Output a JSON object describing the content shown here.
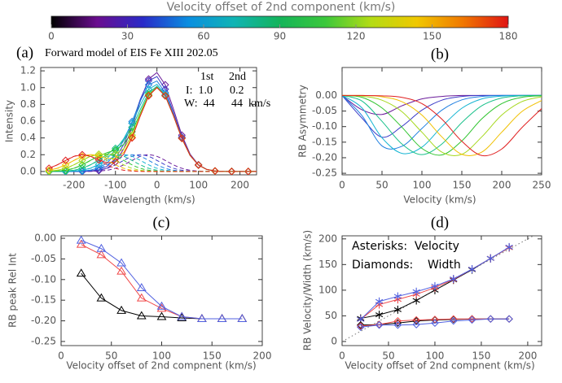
{
  "chart_data": [
    {
      "type": "colorbar",
      "title": "Velocity offset of 2nd component (km/s)",
      "xlim": [
        0,
        180
      ],
      "xticks": [
        0,
        30,
        60,
        90,
        120,
        150,
        180
      ],
      "colors": [
        "#000000",
        "#6a0d8f",
        "#2a2ac8",
        "#0a8ee0",
        "#10b4b4",
        "#14b45a",
        "#3cc83c",
        "#b4dc14",
        "#f0c800",
        "#f07800",
        "#e01414"
      ]
    },
    {
      "type": "line",
      "title": "(a)",
      "subtitle": "Forward model of EIS Fe XIII 202.05",
      "annotations": [
        "1st",
        "2nd",
        "I:  1.0",
        "0.2",
        "W:  44",
        "44  km/s"
      ],
      "xlabel": "Wavelength (km/s)",
      "ylabel": "Intensity",
      "xlim": [
        -280,
        240
      ],
      "xticks": [
        -200,
        -100,
        0,
        100,
        200
      ],
      "ylim": [
        -0.04,
        1.24
      ],
      "yticks": [
        {
          "value": 0,
          "label": "0.0"
        },
        0.2,
        0.4,
        0.6,
        0.8,
        {
          "value": 1,
          "label": "1.0"
        },
        1.2
      ],
      "x": [
        -260,
        -240,
        -220,
        -200,
        -180,
        -160,
        -140,
        -120,
        -100,
        -80,
        -60,
        -40,
        -20,
        0,
        20,
        40,
        60,
        80,
        100,
        120,
        140,
        160,
        180,
        200,
        220,
        240
      ],
      "series": [
        {
          "color": "#6a1b9a",
          "marker": "diamond",
          "values": [
            0,
            0,
            0,
            0,
            0,
            0.002,
            0.011,
            0.039,
            0.114,
            0.27,
            0.527,
            0.842,
            1.102,
            1.18,
            1.034,
            0.741,
            0.433,
            0.206,
            0.081,
            0.025,
            0.006,
            0.001,
            0,
            0,
            0,
            0
          ]
        },
        {
          "color": "#3c3cc8",
          "marker": "diamond",
          "values": [
            0,
            0,
            0,
            0,
            0.001,
            0.006,
            0.021,
            0.062,
            0.155,
            0.323,
            0.575,
            0.862,
            1.082,
            1.132,
            0.981,
            0.7,
            0.41,
            0.196,
            0.077,
            0.024,
            0.006,
            0.001,
            0,
            0,
            0,
            0
          ]
        },
        {
          "color": "#1f7fe0",
          "marker": "diamond",
          "values": [
            0,
            0,
            0,
            0.001,
            0.005,
            0.016,
            0.044,
            0.103,
            0.208,
            0.371,
            0.595,
            0.842,
            1.034,
            1.079,
            0.94,
            0.677,
            0.4,
            0.192,
            0.076,
            0.024,
            0.006,
            0.001,
            0,
            0,
            0,
            0
          ]
        },
        {
          "color": "#14b4d2",
          "marker": "diamond",
          "values": [
            0,
            0,
            0.001,
            0.005,
            0.015,
            0.039,
            0.085,
            0.156,
            0.256,
            0.391,
            0.575,
            0.794,
            0.981,
            1.038,
            0.917,
            0.667,
            0.396,
            0.191,
            0.076,
            0.024,
            0.006,
            0.001,
            0,
            0,
            0,
            0
          ]
        },
        {
          "color": "#18c08a",
          "marker": "diamond",
          "values": [
            0,
            0.001,
            0.005,
            0.015,
            0.038,
            0.08,
            0.138,
            0.204,
            0.276,
            0.371,
            0.527,
            0.741,
            0.94,
            1.015,
            0.907,
            0.663,
            0.395,
            0.191,
            0.076,
            0.024,
            0.006,
            0.001,
            0,
            0,
            0,
            0
          ]
        },
        {
          "color": "#2ec42e",
          "marker": "diamond",
          "values": [
            0.001,
            0.005,
            0.015,
            0.038,
            0.079,
            0.133,
            0.186,
            0.224,
            0.256,
            0.323,
            0.474,
            0.7,
            0.917,
            1.005,
            0.903,
            0.662,
            0.395,
            0.191,
            0.076,
            0.024,
            0.006,
            0.001,
            0,
            0,
            0,
            0
          ]
        },
        {
          "color": "#a6d81e",
          "marker": "diamond",
          "values": [
            0.005,
            0.015,
            0.038,
            0.079,
            0.132,
            0.181,
            0.206,
            0.204,
            0.208,
            0.27,
            0.433,
            0.677,
            0.907,
            1.001,
            0.902,
            0.662,
            0.395,
            0.191,
            0.076,
            0.024,
            0.006,
            0.001,
            0,
            0,
            0,
            0
          ]
        },
        {
          "color": "#f0c000",
          "marker": "diamond",
          "values": [
            0.015,
            0.038,
            0.079,
            0.132,
            0.18,
            0.201,
            0.186,
            0.156,
            0.155,
            0.229,
            0.41,
            0.667,
            0.903,
            1,
            0.902,
            0.662,
            0.395,
            0.191,
            0.076,
            0.024,
            0.006,
            0.001,
            0,
            0,
            0,
            0
          ]
        },
        {
          "color": "#e02020",
          "marker": "diamond",
          "values": [
            0.038,
            0.079,
            0.132,
            0.18,
            0.2,
            0.181,
            0.138,
            0.103,
            0.114,
            0.206,
            0.4,
            0.663,
            0.902,
            1,
            0.902,
            0.662,
            0.395,
            0.191,
            0.076,
            0.024,
            0.006,
            0.001,
            0,
            0,
            0,
            0
          ]
        },
        {
          "color": "#6a1b9a",
          "style": "dashed",
          "values": [
            0,
            0,
            0,
            0,
            0,
            0.001,
            0.005,
            0.015,
            0.038,
            0.079,
            0.132,
            0.18,
            0.2,
            0.18,
            0.132,
            0.079,
            0.038,
            0.015,
            0.005,
            0.001,
            0,
            0,
            0,
            0,
            0,
            0
          ]
        },
        {
          "color": "#3c3cc8",
          "style": "dashed",
          "values": [
            0,
            0,
            0,
            0,
            0.001,
            0.005,
            0.015,
            0.038,
            0.079,
            0.132,
            0.18,
            0.2,
            0.18,
            0.132,
            0.079,
            0.038,
            0.015,
            0.005,
            0.001,
            0,
            0,
            0,
            0,
            0,
            0,
            0
          ]
        },
        {
          "color": "#1f7fe0",
          "style": "dashed",
          "values": [
            0,
            0,
            0,
            0.001,
            0.005,
            0.015,
            0.038,
            0.079,
            0.132,
            0.18,
            0.2,
            0.18,
            0.132,
            0.079,
            0.038,
            0.015,
            0.005,
            0.001,
            0,
            0,
            0,
            0,
            0,
            0,
            0,
            0
          ]
        },
        {
          "color": "#14b4d2",
          "style": "dashed",
          "values": [
            0,
            0,
            0.001,
            0.005,
            0.015,
            0.038,
            0.079,
            0.132,
            0.18,
            0.2,
            0.18,
            0.132,
            0.079,
            0.038,
            0.015,
            0.005,
            0.001,
            0,
            0,
            0,
            0,
            0,
            0,
            0,
            0,
            0
          ]
        },
        {
          "color": "#18c08a",
          "style": "dashed",
          "values": [
            0,
            0.001,
            0.005,
            0.015,
            0.038,
            0.079,
            0.132,
            0.18,
            0.2,
            0.18,
            0.132,
            0.079,
            0.038,
            0.015,
            0.005,
            0.001,
            0,
            0,
            0,
            0,
            0,
            0,
            0,
            0,
            0,
            0
          ]
        },
        {
          "color": "#2ec42e",
          "style": "dashed",
          "values": [
            0.001,
            0.005,
            0.015,
            0.038,
            0.079,
            0.132,
            0.18,
            0.2,
            0.18,
            0.132,
            0.079,
            0.038,
            0.015,
            0.005,
            0.001,
            0,
            0,
            0,
            0,
            0,
            0,
            0,
            0,
            0,
            0,
            0
          ]
        },
        {
          "color": "#a6d81e",
          "style": "dashed",
          "values": [
            0.005,
            0.015,
            0.038,
            0.079,
            0.132,
            0.18,
            0.2,
            0.18,
            0.132,
            0.079,
            0.038,
            0.015,
            0.005,
            0.001,
            0,
            0,
            0,
            0,
            0,
            0,
            0,
            0,
            0,
            0,
            0,
            0
          ]
        },
        {
          "color": "#f0c000",
          "style": "dashed",
          "values": [
            0.015,
            0.038,
            0.079,
            0.132,
            0.18,
            0.2,
            0.18,
            0.132,
            0.079,
            0.038,
            0.015,
            0.005,
            0.001,
            0,
            0,
            0,
            0,
            0,
            0,
            0,
            0,
            0,
            0,
            0,
            0,
            0
          ]
        },
        {
          "color": "#e02020",
          "style": "dashed",
          "values": [
            0.038,
            0.079,
            0.132,
            0.18,
            0.2,
            0.18,
            0.132,
            0.079,
            0.038,
            0.015,
            0.005,
            0.001,
            0,
            0,
            0,
            0,
            0,
            0,
            0,
            0,
            0,
            0,
            0,
            0,
            0,
            0
          ]
        }
      ]
    },
    {
      "type": "line",
      "title": "(b)",
      "xlabel": "Velocity (km/s)",
      "ylabel": "RB Asymmetry",
      "xlim": [
        0,
        250
      ],
      "xticks": [
        0,
        50,
        100,
        150,
        200,
        250
      ],
      "ylim": [
        -0.255,
        0.09
      ],
      "yticks": [
        -0.25,
        {
          "value": -0.2,
          "label": "-0.20"
        },
        -0.15,
        {
          "value": -0.1,
          "label": "-0.10"
        },
        -0.05,
        {
          "value": 0,
          "label": "0.00"
        }
      ],
      "x": [
        0,
        25,
        50,
        75,
        100,
        125,
        150,
        175,
        200,
        225,
        250
      ],
      "series": [
        {
          "color": "#6a1b9a",
          "values": [
            0,
            -0.046,
            -0.061,
            -0.033,
            -0.011,
            -0.003,
            0,
            0,
            0,
            0,
            0
          ]
        },
        {
          "color": "#3c3cc8",
          "values": [
            0,
            -0.073,
            -0.134,
            -0.099,
            -0.047,
            -0.015,
            -0.003,
            0,
            0,
            0,
            0
          ]
        },
        {
          "color": "#1f7fe0",
          "values": [
            0,
            -0.065,
            -0.162,
            -0.163,
            -0.106,
            -0.047,
            -0.014,
            -0.003,
            0,
            0,
            0
          ]
        },
        {
          "color": "#14b4d2",
          "values": [
            0,
            -0.04,
            -0.136,
            -0.186,
            -0.166,
            -0.1,
            -0.041,
            -0.011,
            -0.002,
            0,
            0
          ]
        },
        {
          "color": "#18c08a",
          "values": [
            0,
            -0.018,
            -0.083,
            -0.156,
            -0.19,
            -0.156,
            -0.087,
            -0.033,
            -0.008,
            -0.001,
            0
          ]
        },
        {
          "color": "#2ec42e",
          "values": [
            0,
            -0.006,
            -0.04,
            -0.102,
            -0.17,
            -0.191,
            -0.146,
            -0.075,
            -0.026,
            -0.006,
            -0.001
          ]
        },
        {
          "color": "#a6d81e",
          "values": [
            0,
            -0.002,
            -0.015,
            -0.052,
            -0.118,
            -0.182,
            -0.189,
            -0.133,
            -0.063,
            -0.02,
            -0.004
          ]
        },
        {
          "color": "#f0c000",
          "values": [
            0,
            0,
            -0.004,
            -0.02,
            -0.063,
            -0.133,
            -0.189,
            -0.182,
            -0.118,
            -0.052,
            -0.016
          ]
        },
        {
          "color": "#e02020",
          "values": [
            0,
            0,
            -0.001,
            -0.006,
            -0.026,
            -0.076,
            -0.147,
            -0.193,
            -0.172,
            -0.104,
            -0.042
          ]
        }
      ]
    },
    {
      "type": "line",
      "title": "(c)",
      "xlabel": "Velocity offset of 2nd compnent (km/s)",
      "ylabel": "RB peak Rel Int",
      "xlim": [
        0,
        200
      ],
      "xticks": [
        0,
        50,
        100,
        150,
        200
      ],
      "ylim": [
        -0.26,
        0.006
      ],
      "yticks": [
        -0.25,
        {
          "value": -0.2,
          "label": "-0.20"
        },
        -0.15,
        {
          "value": -0.1,
          "label": "-0.10"
        },
        -0.05,
        {
          "value": 0,
          "label": "0.00"
        }
      ],
      "x": [
        20,
        40,
        60,
        80,
        100,
        120,
        140,
        160,
        180
      ],
      "series": [
        {
          "color": "#000000",
          "marker": "triangle",
          "values": [
            -0.085,
            -0.145,
            -0.175,
            -0.188,
            -0.19,
            -0.193,
            -0.195,
            -0.195,
            -0.195
          ]
        },
        {
          "color": "#f04848",
          "marker": "triangle",
          "values": [
            -0.015,
            -0.04,
            -0.08,
            -0.145,
            -0.17,
            -0.19,
            -0.195,
            -0.195,
            -0.195
          ]
        },
        {
          "color": "#5060e0",
          "marker": "triangle",
          "values": [
            -0.005,
            -0.025,
            -0.06,
            -0.12,
            -0.165,
            -0.19,
            -0.195,
            -0.195,
            -0.195
          ]
        }
      ]
    },
    {
      "type": "line",
      "title": "(d)",
      "xlabel": "Velocity offset of 2nd compnent (km/s)",
      "ylabel": "RB Velocity/Width (km/s)",
      "annotations": [
        "Asterisks:  Velocity",
        "Diamonds:    Width"
      ],
      "identity_line": true,
      "xlim": [
        0,
        215
      ],
      "xticks": [
        0,
        50,
        100,
        150,
        200
      ],
      "ylim": [
        -8,
        206
      ],
      "yticks": [
        0,
        50,
        100,
        150,
        200
      ],
      "x": [
        20,
        40,
        60,
        80,
        100,
        120,
        140,
        160,
        180
      ],
      "series": [
        {
          "color": "#000000",
          "marker": "asterisk",
          "values": [
            45,
            52,
            62,
            80,
            100,
            120,
            140,
            162,
            183
          ]
        },
        {
          "color": "#f04848",
          "marker": "asterisk",
          "values": [
            43,
            72,
            82,
            92,
            105,
            121,
            141,
            162,
            183
          ]
        },
        {
          "color": "#5060e0",
          "marker": "asterisk",
          "values": [
            43,
            78,
            88,
            97,
            108,
            122,
            141,
            162,
            184
          ]
        },
        {
          "color": "#000000",
          "marker": "diamond",
          "values": [
            32,
            33,
            36,
            40,
            42,
            43,
            44,
            44,
            44
          ]
        },
        {
          "color": "#f04848",
          "marker": "diamond",
          "values": [
            30,
            33,
            40,
            42,
            43,
            44,
            44,
            44,
            44
          ]
        },
        {
          "color": "#5060e0",
          "marker": "diamond",
          "values": [
            28,
            32,
            32,
            33,
            36,
            40,
            42,
            44,
            44
          ]
        }
      ]
    }
  ]
}
